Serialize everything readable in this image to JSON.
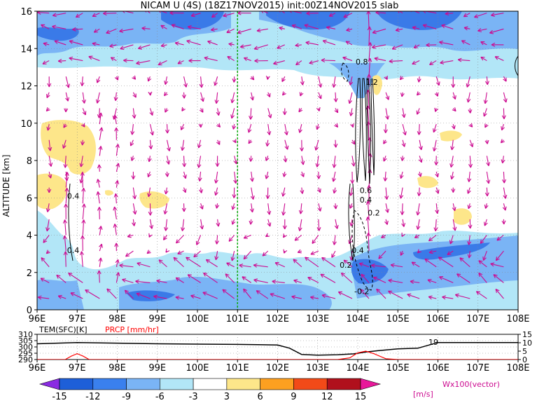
{
  "chart_data": [
    {
      "type": "heatmap",
      "title": "NICAM U (4S) (18Z17NOV2015) init:00Z14NOV2015 slab",
      "xlabel": "",
      "ylabel": "ALTITUDE [km]",
      "x_ticks": [
        "96E",
        "97E",
        "98E",
        "99E",
        "100E",
        "101E",
        "102E",
        "103E",
        "104E",
        "105E",
        "106E",
        "107E",
        "108E"
      ],
      "x_values": [
        96,
        97,
        98,
        99,
        100,
        101,
        102,
        103,
        104,
        105,
        106,
        107,
        108
      ],
      "y_ticks": [
        "0",
        "2",
        "4",
        "6",
        "8",
        "10",
        "12",
        "14",
        "16"
      ],
      "y_values": [
        0,
        2,
        4,
        6,
        8,
        10,
        12,
        14,
        16
      ],
      "xlim": [
        96,
        108
      ],
      "ylim": [
        0,
        16
      ],
      "contour_labels": [
        {
          "text": "0.4",
          "x": 96.9,
          "y": 6.1
        },
        {
          "text": "0.4",
          "x": 96.9,
          "y": 3.2
        },
        {
          "text": "0.8",
          "x": 104.1,
          "y": 13.3
        },
        {
          "text": "1.2",
          "x": 104.35,
          "y": 12.2
        },
        {
          "text": "0.6",
          "x": 104.2,
          "y": 6.4
        },
        {
          "text": "0.4",
          "x": 104.2,
          "y": 5.9
        },
        {
          "text": "0.2",
          "x": 104.4,
          "y": 5.2
        },
        {
          "text": "0.4",
          "x": 104.0,
          "y": 3.2
        },
        {
          "text": "0.2",
          "x": 103.7,
          "y": 2.4
        },
        {
          "text": "-0.2",
          "x": 104.1,
          "y": 1.0
        }
      ],
      "vertical_line_x": 101
    },
    {
      "type": "line",
      "labels": [
        "TEM(SFC)[K]",
        "PRCP [mm/hr]"
      ],
      "left_ticks": [
        "310",
        "305",
        "300",
        "295",
        "290"
      ],
      "right_ticks": [
        "15",
        "10",
        "5",
        "0"
      ],
      "x_ticks": [
        "96E",
        "97E",
        "98E",
        "99E",
        "100E",
        "101E",
        "102E",
        "103E",
        "104E",
        "105E",
        "106E",
        "107E",
        "108E"
      ],
      "xlim": [
        96,
        108
      ],
      "series": [
        {
          "name": "TEM(SFC)[K]",
          "color": "#000000",
          "axis": "left",
          "x": [
            96,
            97,
            98,
            99,
            100,
            101,
            101.5,
            102,
            102.3,
            102.6,
            103,
            103.5,
            103.9,
            104.2,
            104.5,
            105,
            105.5,
            106,
            106.5,
            107,
            108
          ],
          "y": [
            302.5,
            303.5,
            303,
            302.5,
            302.2,
            302,
            301.8,
            301.5,
            299,
            294,
            293.5,
            293.8,
            294.5,
            296,
            297,
            298.5,
            299,
            303.5,
            303.5,
            303.5,
            303.5
          ]
        },
        {
          "name": "PRCP [mm/hr]",
          "color": "#ff0000",
          "axis": "right",
          "x": [
            96,
            96.7,
            96.85,
            97.0,
            97.15,
            97.3,
            97.6,
            98,
            103.5,
            103.8,
            104.0,
            104.2,
            104.4,
            104.7,
            105,
            108
          ],
          "y": [
            0,
            0,
            2,
            3.5,
            2,
            0,
            0,
            0,
            0,
            1,
            4,
            5,
            3.5,
            0.5,
            0,
            0
          ]
        }
      ],
      "annotation": "19"
    }
  ],
  "colorbar": {
    "ticks": [
      "-15",
      "-12",
      "-9",
      "-6",
      "-3",
      "3",
      "6",
      "9",
      "12",
      "15"
    ],
    "unit": "[m/s]",
    "colors": [
      "#8a2be2",
      "#1e5fd8",
      "#3a80ee",
      "#7ab4f5",
      "#b2e6f7",
      "#ffffff",
      "#fde68a",
      "#fda020",
      "#f24a18",
      "#b0101c",
      "#e8189a"
    ]
  },
  "vector_label": "Wx100(vector)",
  "colors": {
    "strong_neg": "#3a7ae8",
    "mid_neg": "#7ab4f5",
    "weak_neg": "#b2e6f7",
    "weak_pos": "#fde68a",
    "vector": "#cc0a90",
    "green_line": "#11aa11"
  }
}
